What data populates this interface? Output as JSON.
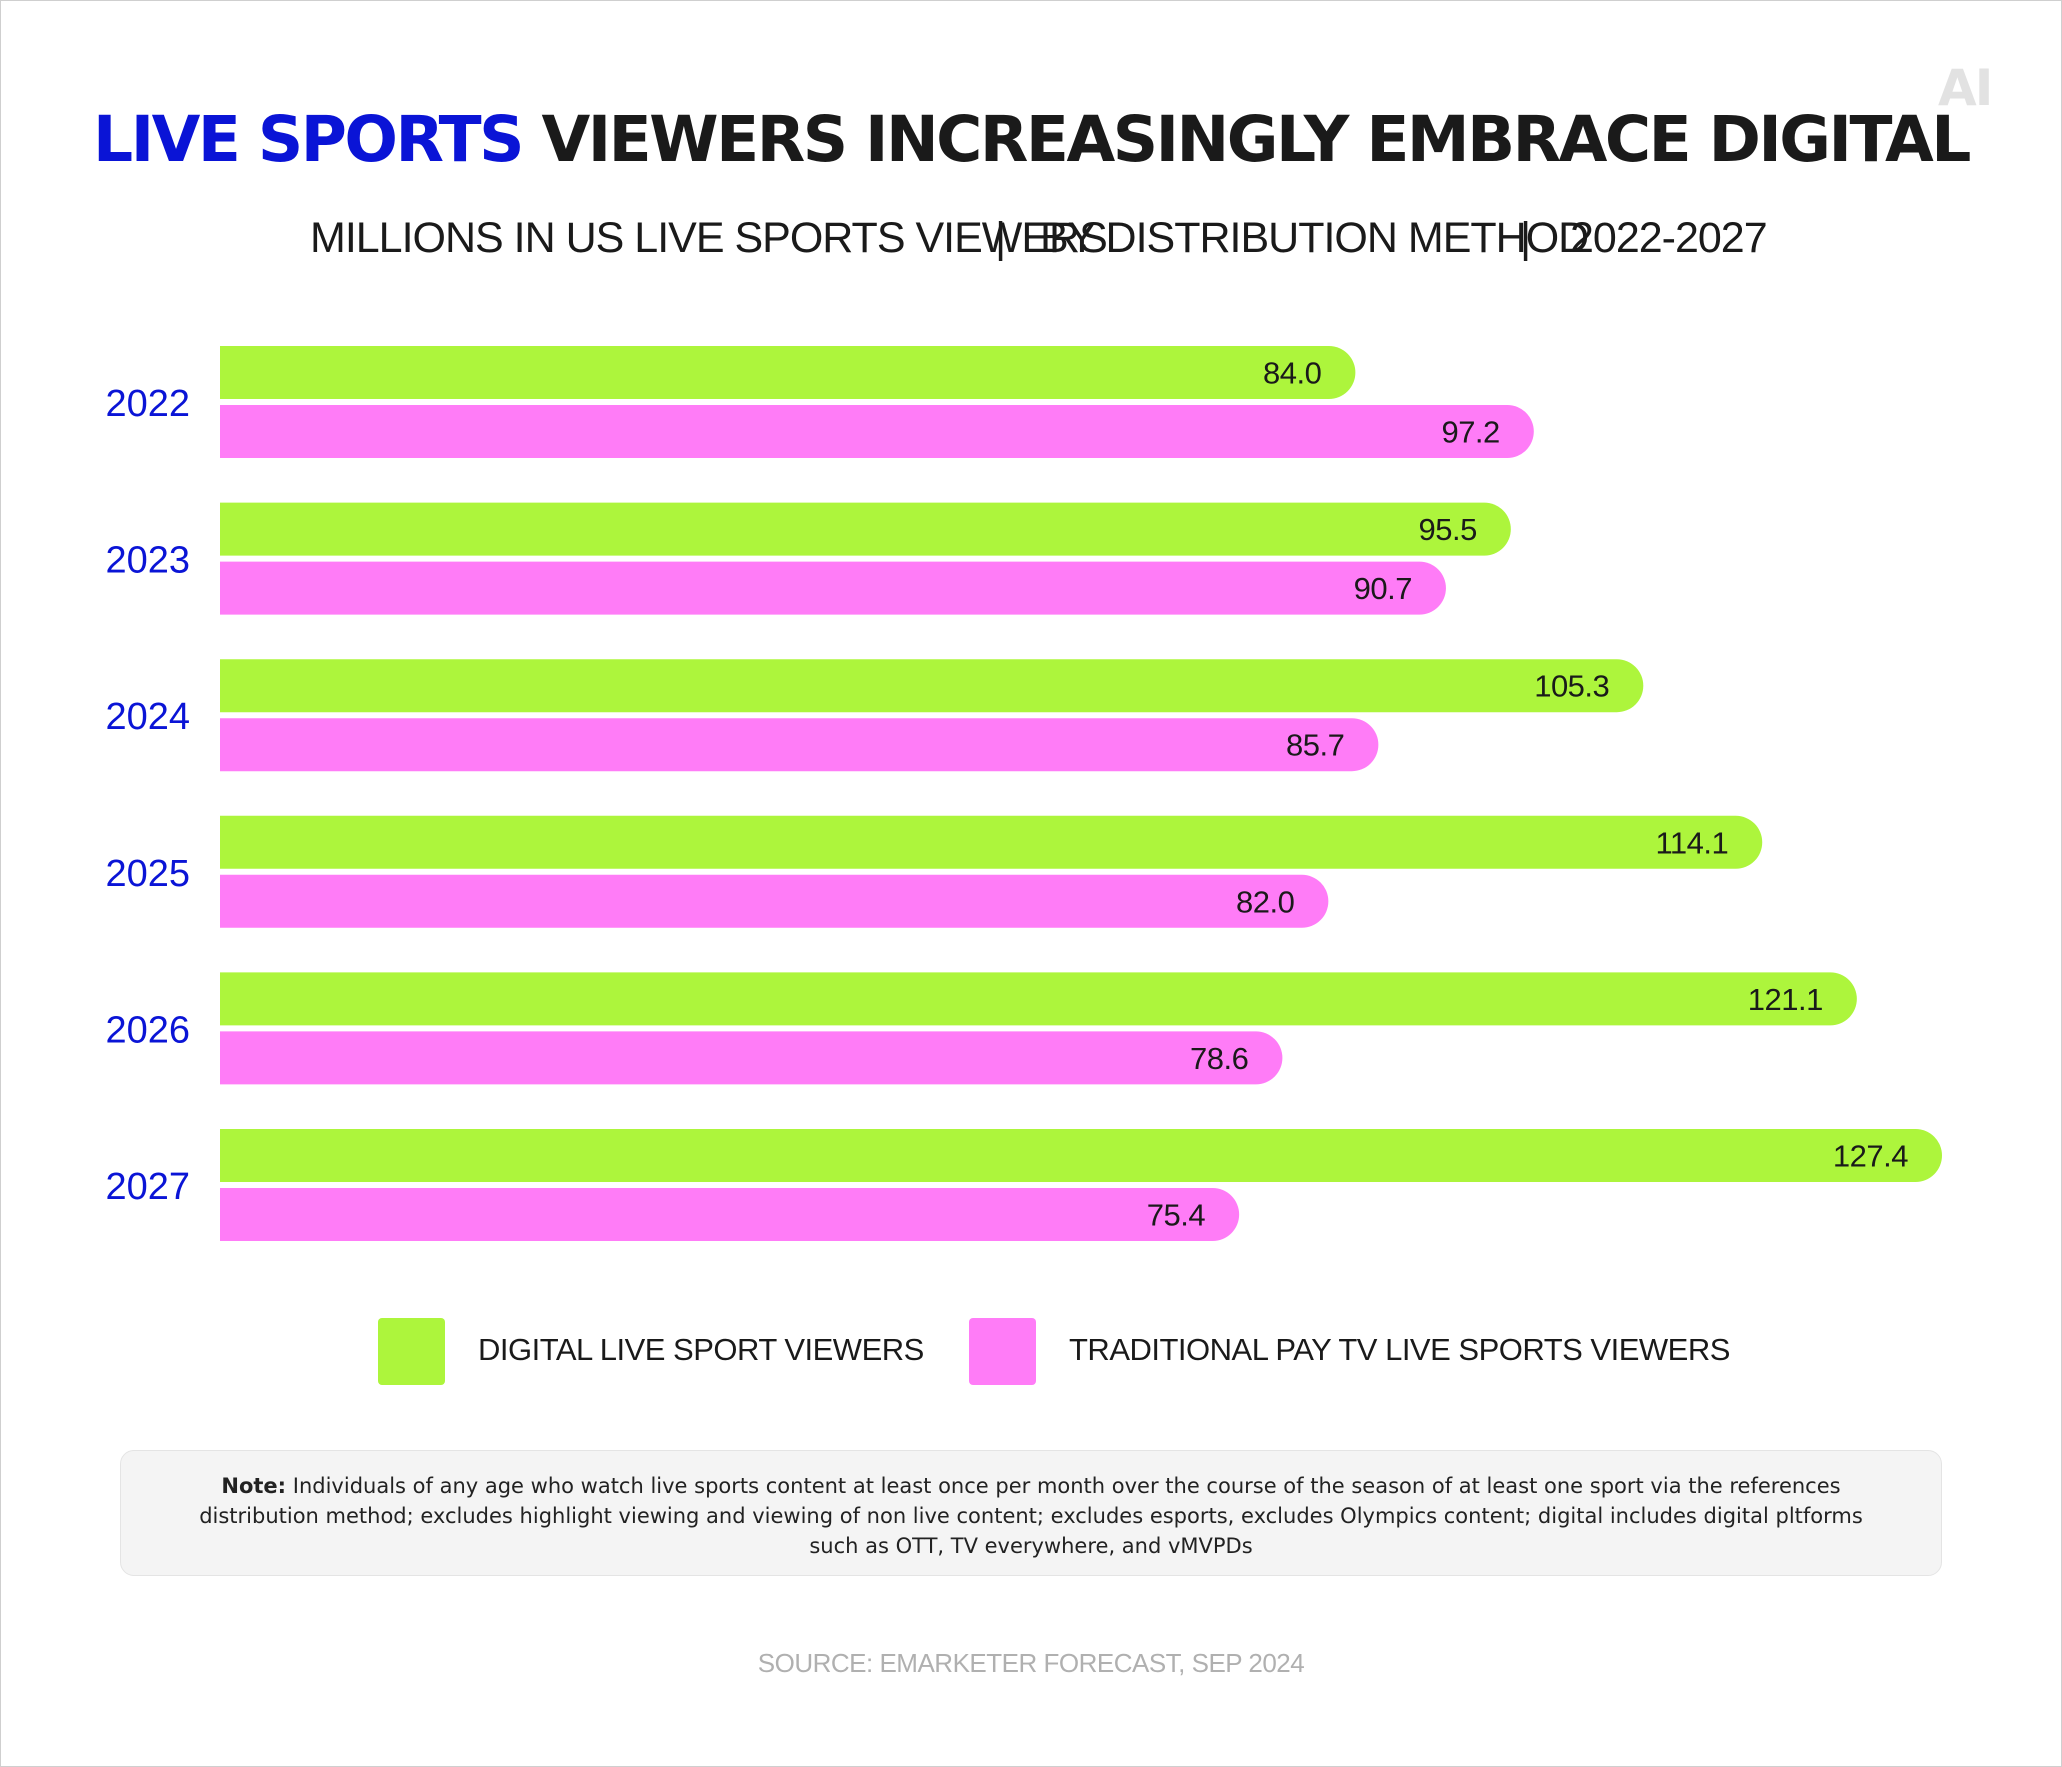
{
  "branding": {
    "logo_text": "AI"
  },
  "header": {
    "title_accent": "LIVE SPORTS",
    "title_rest": "VIEWERS INCREASINGLY EMBRACE DIGITAL",
    "subtitle_parts": [
      "MILLIONS IN US LIVE SPORTS VIEWERS",
      "BY DISTRIBUTION METHOD",
      "2022-2027"
    ],
    "separator": "|"
  },
  "legend": {
    "digital_label": "DIGITAL LIVE SPORT VIEWERS",
    "traditional_label": "TRADITIONAL PAY TV LIVE SPORTS VIEWERS"
  },
  "note": {
    "label": "Note:",
    "text": "Individuals of any age who watch live sports content at least once per month over the course of the season of at least one sport via the references distribution method; excludes highlight viewing and viewing of non live content; excludes esports, excludes Olympics content; digital includes digital pltforms such as OTT, TV everywhere, and vMVPDs"
  },
  "source": "SOURCE: EMARKETER FORECAST, SEP 2024",
  "colors": {
    "digital": "#adf53c",
    "traditional": "#ff7cf7",
    "accent": "#0a14d6",
    "text": "#1a1a1a"
  },
  "chart_data": {
    "type": "bar",
    "orientation": "horizontal",
    "categories": [
      "2022",
      "2023",
      "2024",
      "2025",
      "2026",
      "2027"
    ],
    "series": [
      {
        "name": "DIGITAL LIVE SPORT VIEWERS",
        "values": [
          84.0,
          95.5,
          105.3,
          114.1,
          121.1,
          127.4
        ],
        "labels": [
          "84.0",
          "95.5",
          "105.3",
          "114.1",
          "121.1",
          "127.4"
        ]
      },
      {
        "name": "TRADITIONAL PAY TV LIVE SPORTS VIEWERS",
        "values": [
          97.2,
          90.7,
          85.7,
          82.0,
          78.6,
          75.4
        ],
        "labels": [
          "97.2",
          "90.7",
          "85.7",
          "82.0",
          "78.6",
          "75.4"
        ]
      }
    ],
    "xlim": [
      0,
      127.4
    ],
    "grid": false,
    "legend_position": "bottom"
  }
}
